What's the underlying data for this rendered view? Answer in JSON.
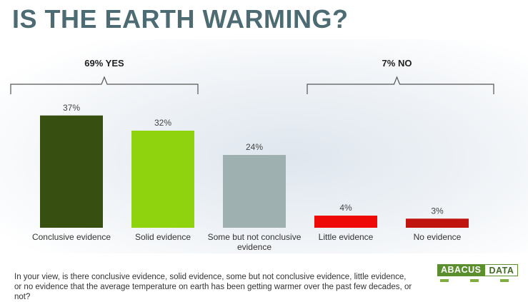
{
  "title": "IS THE EARTH WARMING?",
  "caption": "In your view, is there conclusive evidence, solid evidence, some but not conclusive evidence, little  evidence, or no evidence that the average temperature on earth has been getting warmer over the past few decades, or not?",
  "logo": {
    "part1": "ABACUS",
    "part2": "DATA"
  },
  "chart_data": {
    "type": "bar",
    "categories": [
      "Conclusive evidence",
      "Solid evidence",
      "Some but not conclusive evidence",
      "Little evidence",
      "No evidence"
    ],
    "category_lines": [
      [
        "Conclusive evidence"
      ],
      [
        "Solid evidence"
      ],
      [
        "Some but not conclusive",
        "evidence"
      ],
      [
        "Little evidence"
      ],
      [
        "No evidence"
      ]
    ],
    "values": [
      37,
      32,
      24,
      4,
      3
    ],
    "value_labels": [
      "37%",
      "32%",
      "24%",
      "4%",
      "3%"
    ],
    "colors": [
      "#375012",
      "#8fd30e",
      "#9fb0b1",
      "#ee0a06",
      "#c0150f"
    ],
    "ylim": [
      0,
      40
    ],
    "groups": [
      {
        "label": "69% YES",
        "categories": [
          0,
          1
        ]
      },
      {
        "label": "7% NO",
        "categories": [
          3,
          4
        ]
      }
    ]
  }
}
